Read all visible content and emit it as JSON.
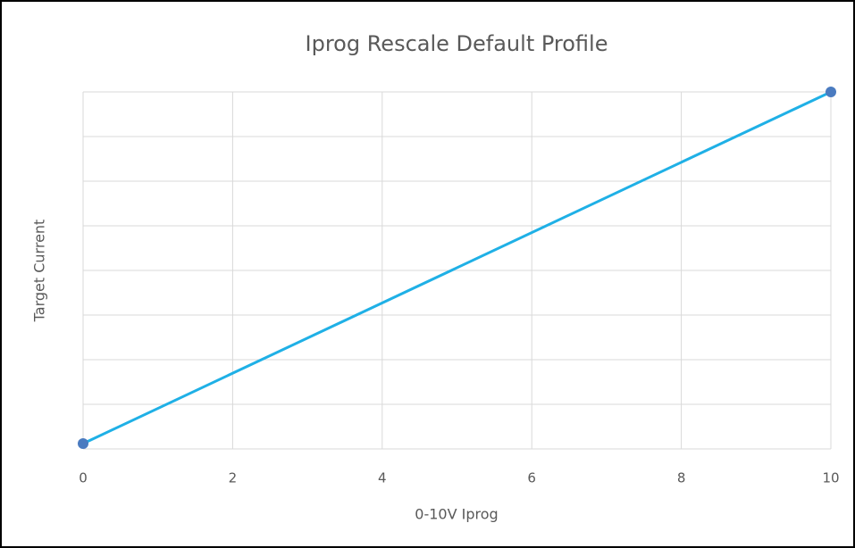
{
  "chart_data": {
    "type": "line",
    "title": "Iprog Rescale Default Profile",
    "x_label": "0-10V Iprog",
    "y_label": "Target Current",
    "x": [
      0,
      10
    ],
    "series": [
      {
        "name": "Target Current",
        "color": "#1fb0e6",
        "marker_color": "#4a7bc0",
        "values": [
          0.12,
          8
        ]
      }
    ],
    "xlim": [
      0,
      10
    ],
    "xticks": [
      0,
      2,
      4,
      6,
      8,
      10
    ],
    "ylim": [
      0,
      8
    ],
    "yticks": [
      0,
      1,
      2,
      3,
      4,
      5,
      6,
      7,
      8
    ],
    "ytick_labels": false,
    "grid": true,
    "legend": false
  }
}
